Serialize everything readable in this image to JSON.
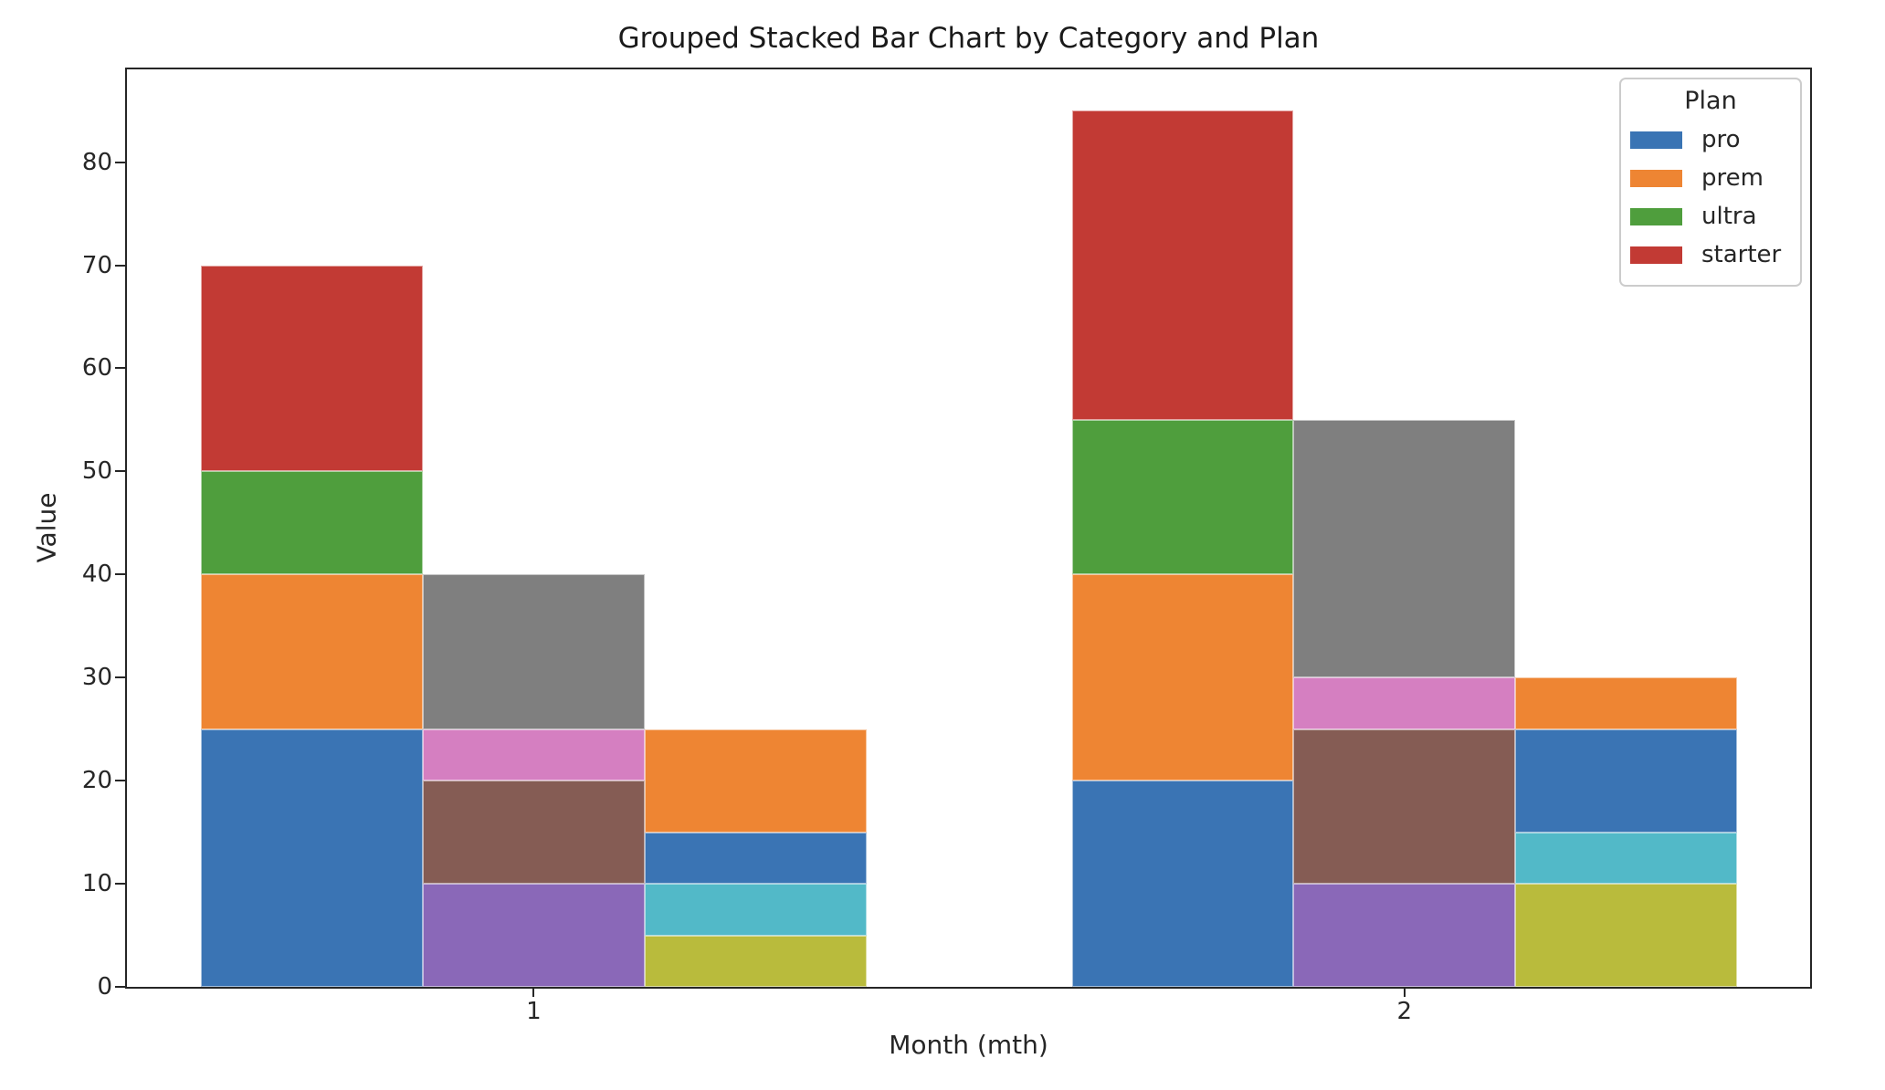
{
  "title": "Grouped Stacked Bar Chart by Category and Plan",
  "axes": {
    "xlabel": "Month (mth)",
    "ylabel": "Value"
  },
  "legend": {
    "title": "Plan",
    "entries": [
      {
        "label": "pro",
        "color": "#3A74B4"
      },
      {
        "label": "prem",
        "color": "#EE8533"
      },
      {
        "label": "ultra",
        "color": "#4F9E3D"
      },
      {
        "label": "starter",
        "color": "#C23A34"
      }
    ]
  },
  "chart_data": {
    "type": "bar",
    "variant": "grouped-stacked",
    "title": "Grouped Stacked Bar Chart by Category and Plan",
    "xlabel": "Month (mth)",
    "ylabel": "Value",
    "categories": [
      "1",
      "2"
    ],
    "y_ticks": [
      0,
      10,
      20,
      30,
      40,
      50,
      60,
      70,
      80
    ],
    "ylim": [
      0,
      89
    ],
    "grid": false,
    "legend_position": "upper right",
    "plans": [
      "pro",
      "prem",
      "ultra",
      "starter"
    ],
    "groups": [
      {
        "month": "1",
        "bars": [
          {
            "total": 70,
            "segments": [
              {
                "plan": "pro",
                "value": 25,
                "color": "#3A74B4"
              },
              {
                "plan": "prem",
                "value": 15,
                "color": "#EE8533"
              },
              {
                "plan": "ultra",
                "value": 10,
                "color": "#4F9E3D"
              },
              {
                "plan": "starter",
                "value": 20,
                "color": "#C23A34"
              }
            ]
          },
          {
            "total": 40,
            "segments": [
              {
                "plan": "pro",
                "value": 10,
                "color": "#8A68B8"
              },
              {
                "plan": "prem",
                "value": 10,
                "color": "#855C54"
              },
              {
                "plan": "ultra",
                "value": 5,
                "color": "#D57FC1"
              },
              {
                "plan": "starter",
                "value": 15,
                "color": "#7F7F7F"
              }
            ]
          },
          {
            "total": 25,
            "segments": [
              {
                "plan": "pro",
                "value": 5,
                "color": "#B9BB3C"
              },
              {
                "plan": "prem",
                "value": 5,
                "color": "#52B9C8"
              },
              {
                "plan": "ultra",
                "value": 5,
                "color": "#3A74B4"
              },
              {
                "plan": "starter",
                "value": 10,
                "color": "#EE8533"
              }
            ]
          }
        ]
      },
      {
        "month": "2",
        "bars": [
          {
            "total": 85,
            "segments": [
              {
                "plan": "pro",
                "value": 20,
                "color": "#3A74B4"
              },
              {
                "plan": "prem",
                "value": 20,
                "color": "#EE8533"
              },
              {
                "plan": "ultra",
                "value": 15,
                "color": "#4F9E3D"
              },
              {
                "plan": "starter",
                "value": 30,
                "color": "#C23A34"
              }
            ]
          },
          {
            "total": 55,
            "segments": [
              {
                "plan": "pro",
                "value": 10,
                "color": "#8A68B8"
              },
              {
                "plan": "prem",
                "value": 15,
                "color": "#855C54"
              },
              {
                "plan": "ultra",
                "value": 5,
                "color": "#D57FC1"
              },
              {
                "plan": "starter",
                "value": 25,
                "color": "#7F7F7F"
              }
            ]
          },
          {
            "total": 30,
            "segments": [
              {
                "plan": "pro",
                "value": 10,
                "color": "#B9BB3C"
              },
              {
                "plan": "prem",
                "value": 5,
                "color": "#52B9C8"
              },
              {
                "plan": "ultra",
                "value": 10,
                "color": "#3A74B4"
              },
              {
                "plan": "starter",
                "value": 5,
                "color": "#EE8533"
              }
            ]
          }
        ]
      }
    ]
  }
}
